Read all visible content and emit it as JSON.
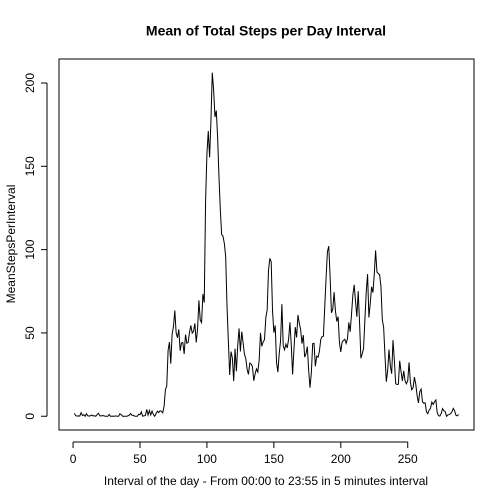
{
  "chart_data": {
    "type": "line",
    "title": "Mean of Total Steps per Day Interval",
    "x_label": "Interval of the day - From 00:00 to 23:55 in 5 minutes interval",
    "y_label": "MeanStepsPerInterval",
    "color": "#000000",
    "x": [
      1,
      2,
      3,
      4,
      5,
      6,
      7,
      8,
      9,
      10,
      11,
      12,
      13,
      14,
      15,
      16,
      17,
      18,
      19,
      20,
      21,
      22,
      23,
      24,
      25,
      26,
      27,
      28,
      29,
      30,
      31,
      32,
      33,
      34,
      35,
      36,
      37,
      38,
      39,
      40,
      41,
      42,
      43,
      44,
      45,
      46,
      47,
      48,
      49,
      50,
      51,
      52,
      53,
      54,
      55,
      56,
      57,
      58,
      59,
      60,
      61,
      62,
      63,
      64,
      65,
      66,
      67,
      68,
      69,
      70,
      71,
      72,
      73,
      74,
      75,
      76,
      77,
      78,
      79,
      80,
      81,
      82,
      83,
      84,
      85,
      86,
      87,
      88,
      89,
      90,
      91,
      92,
      93,
      94,
      95,
      96,
      97,
      98,
      99,
      100,
      101,
      102,
      103,
      104,
      105,
      106,
      107,
      108,
      109,
      110,
      111,
      112,
      113,
      114,
      115,
      116,
      117,
      118,
      119,
      120,
      121,
      122,
      123,
      124,
      125,
      126,
      127,
      128,
      129,
      130,
      131,
      132,
      133,
      134,
      135,
      136,
      137,
      138,
      139,
      140,
      141,
      142,
      143,
      144,
      145,
      146,
      147,
      148,
      149,
      150,
      151,
      152,
      153,
      154,
      155,
      156,
      157,
      158,
      159,
      160,
      161,
      162,
      163,
      164,
      165,
      166,
      167,
      168,
      169,
      170,
      171,
      172,
      173,
      174,
      175,
      176,
      177,
      178,
      179,
      180,
      181,
      182,
      183,
      184,
      185,
      186,
      187,
      188,
      189,
      190,
      191,
      192,
      193,
      194,
      195,
      196,
      197,
      198,
      199,
      200,
      201,
      202,
      203,
      204,
      205,
      206,
      207,
      208,
      209,
      210,
      211,
      212,
      213,
      214,
      215,
      216,
      217,
      218,
      219,
      220,
      221,
      222,
      223,
      224,
      225,
      226,
      227,
      228,
      229,
      230,
      231,
      232,
      233,
      234,
      235,
      236,
      237,
      238,
      239,
      240,
      241,
      242,
      243,
      244,
      245,
      246,
      247,
      248,
      249,
      250,
      251,
      252,
      253,
      254,
      255,
      256,
      257,
      258,
      259,
      260,
      261,
      262,
      263,
      264,
      265,
      266,
      267,
      268,
      269,
      270,
      271,
      272,
      273,
      274,
      275,
      276,
      277,
      278,
      279,
      280,
      281,
      282,
      283,
      284,
      285,
      286,
      287,
      288
    ],
    "values": [
      1.7,
      0.3,
      0.1,
      0.2,
      0.1,
      2.1,
      0.5,
      0.9,
      0,
      1.5,
      0.3,
      0.1,
      0.3,
      0.7,
      0.2,
      0.3,
      0,
      1.1,
      1.8,
      0.2,
      0.2,
      0.4,
      0.3,
      0,
      0,
      0,
      1.1,
      0,
      0,
      0.1,
      0,
      0.2,
      0,
      0,
      1.5,
      0.9,
      0,
      0,
      0,
      0,
      0.2,
      0.6,
      1.6,
      0.6,
      0.5,
      0.1,
      0,
      0,
      1.2,
      0.9,
      2.6,
      0,
      0.3,
      0.4,
      4.1,
      0.7,
      3.5,
      0.8,
      3.1,
      1.1,
      0,
      1.6,
      3,
      2.2,
      3.3,
      3,
      2.1,
      6.1,
      16,
      18.3,
      39.5,
      44.5,
      31.5,
      49.3,
      53.8,
      63.5,
      50,
      47.1,
      52.2,
      39.3,
      44,
      44.2,
      37.4,
      49,
      43.8,
      44.4,
      50.5,
      54.5,
      49.9,
      51,
      55.7,
      44.3,
      52.3,
      69.5,
      57.8,
      56.2,
      73.4,
      68.2,
      129.4,
      157.5,
      171.2,
      155.4,
      177.3,
      206.2,
      195.9,
      179.6,
      183.4,
      167,
      143.5,
      124,
      109.1,
      108.1,
      103.7,
      96,
      66.2,
      45.2,
      24.8,
      38.8,
      35,
      21.1,
      40.6,
      27,
      42.4,
      52.7,
      38.9,
      50.8,
      44.3,
      37.4,
      34.7,
      28.3,
      25.1,
      31.9,
      31.4,
      29.7,
      21.3,
      25.5,
      28.4,
      26.5,
      33.4,
      50,
      42,
      44.6,
      46,
      59.2,
      63.9,
      87.7,
      94.8,
      92.8,
      63.4,
      50.2,
      54.5,
      32.4,
      26.5,
      37.7,
      45.1,
      67.3,
      42.3,
      39.9,
      43.3,
      41,
      46.2,
      56.4,
      42.8,
      25.1,
      40,
      53.5,
      47.3,
      60.8,
      55.8,
      52,
      43.6,
      48.7,
      35.5,
      37.5,
      41.8,
      27.5,
      17.1,
      26.1,
      43.6,
      43.8,
      30,
      36.1,
      35.5,
      38.8,
      46,
      47.8,
      48.1,
      65.3,
      82.9,
      98.7,
      102.1,
      84,
      62.1,
      64.1,
      74.5,
      63.2,
      56.9,
      59.8,
      43.9,
      38.6,
      44.7,
      45.5,
      46.2,
      43.7,
      46.6,
      56.3,
      50.7,
      61.2,
      72.7,
      78.9,
      68.9,
      59.7,
      75.1,
      56.5,
      34.8,
      37.5,
      40.7,
      58,
      74.7,
      85.3,
      59.3,
      67.8,
      77.7,
      74.2,
      85.3,
      99.5,
      86.6,
      85.6,
      84.9,
      77.8,
      58,
      53.4,
      36.3,
      20.7,
      27.4,
      40,
      30.2,
      25.5,
      45.7,
      33.5,
      19.6,
      19,
      19.3,
      33.3,
      26.8,
      21.2,
      27.3,
      21.3,
      19.5,
      21.3,
      32.3,
      20.2,
      15.9,
      17.2,
      23.5,
      19.2,
      12.5,
      8,
      14.7,
      16.3,
      8.7,
      7.8,
      8.1,
      2.6,
      1.5,
      3.7,
      4.8,
      8.5,
      7.1,
      8.7,
      9.8,
      2.2,
      0.3,
      0.1,
      1.6,
      4.6,
      3.3,
      2.8,
      0,
      0.8,
      1,
      1.6,
      2.6,
      4.7,
      3.3,
      0.6,
      0.2,
      1.1
    ],
    "xlim": [
      -10.5,
      299.5
    ],
    "xticks": [
      0,
      50,
      100,
      150,
      200,
      250
    ],
    "ylim": [
      -8.25,
      214.4
    ],
    "yticks": [
      0,
      50,
      100,
      150,
      200
    ]
  }
}
